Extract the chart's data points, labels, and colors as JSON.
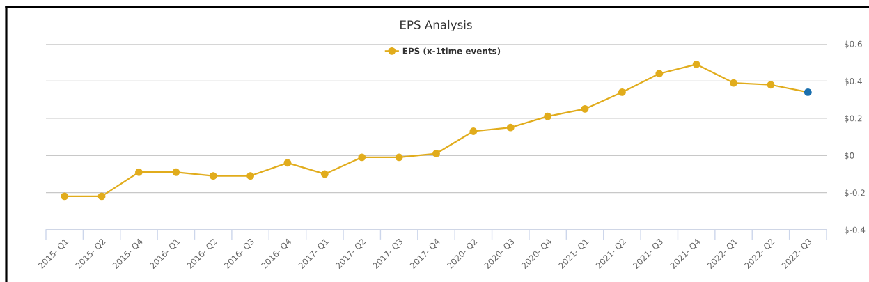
{
  "chart_data": {
    "type": "line",
    "title": "EPS Analysis",
    "categories": [
      "2015- Q1",
      "2015- Q2",
      "2015- Q4",
      "2016- Q1",
      "2016- Q2",
      "2016- Q3",
      "2016- Q4",
      "2017- Q1",
      "2017- Q2",
      "2017- Q3",
      "2017- Q4",
      "2020- Q2",
      "2020- Q3",
      "2020- Q4",
      "2021- Q1",
      "2021- Q2",
      "2021- Q3",
      "2021- Q4",
      "2022- Q1",
      "2022- Q2",
      "2022- Q3"
    ],
    "series": [
      {
        "name": "EPS (x-1time events)",
        "color": "#e1ac1c",
        "colors": [
          "#e1ac1c",
          "#e1ac1c",
          "#e1ac1c",
          "#e1ac1c",
          "#e1ac1c",
          "#e1ac1c",
          "#e1ac1c",
          "#e1ac1c",
          "#e1ac1c",
          "#e1ac1c",
          "#e1ac1c",
          "#e1ac1c",
          "#e1ac1c",
          "#e1ac1c",
          "#e1ac1c",
          "#e1ac1c",
          "#e1ac1c",
          "#e1ac1c",
          "#e1ac1c",
          "#e1ac1c",
          "#1a6fae"
        ],
        "values": [
          -0.22,
          -0.22,
          -0.09,
          -0.09,
          -0.11,
          -0.11,
          -0.04,
          -0.1,
          -0.01,
          -0.01,
          0.01,
          0.13,
          0.15,
          0.21,
          0.25,
          0.34,
          0.44,
          0.49,
          0.39,
          0.38,
          0.34
        ]
      }
    ],
    "ylim": [
      -0.4,
      0.6
    ],
    "yticks": [
      {
        "value": -0.4,
        "label": "$-0.4"
      },
      {
        "value": -0.2,
        "label": "$-0.2"
      },
      {
        "value": 0,
        "label": "$0"
      },
      {
        "value": 0.2,
        "label": "$0.2"
      },
      {
        "value": 0.4,
        "label": "$0.4"
      },
      {
        "value": 0.6,
        "label": "$0.6"
      }
    ],
    "grid": "y",
    "legend": "top",
    "marker": "circle",
    "line_style": "solid"
  }
}
